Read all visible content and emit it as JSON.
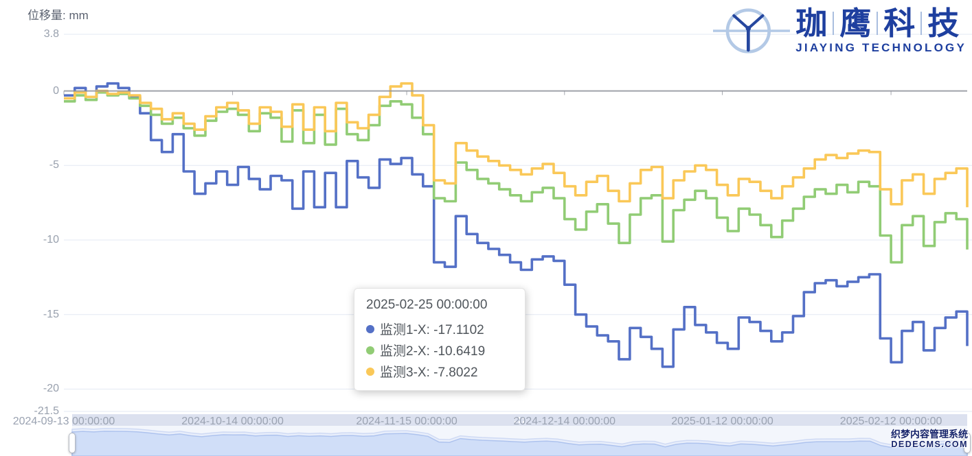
{
  "chart_data": {
    "type": "line",
    "step": "end",
    "title": "位移量: mm",
    "xlabel": "",
    "ylabel": "位移量: mm",
    "ylim": [
      -21.5,
      3.8
    ],
    "grid": true,
    "x_start": "2024-09-13 00:00:00",
    "x_interval_days": 2,
    "x_total_days": 166,
    "x_ticks": [
      {
        "label": "2024-09-13 00:00:00",
        "day": 0
      },
      {
        "label": "2024-10-14 00:00:00",
        "day": 31
      },
      {
        "label": "2024-11-15 00:00:00",
        "day": 63
      },
      {
        "label": "2024-12-14 00:00:00",
        "day": 92
      },
      {
        "label": "2025-01-12 00:00:00",
        "day": 121
      },
      {
        "label": "2025-02-12 00:00:00",
        "day": 152
      }
    ],
    "y_ticks": [
      {
        "value": 3.8,
        "label": "3.8"
      },
      {
        "value": 0,
        "label": "0"
      },
      {
        "value": -5,
        "label": "-5"
      },
      {
        "value": -10,
        "label": "-10"
      },
      {
        "value": -15,
        "label": "-15"
      },
      {
        "value": -20,
        "label": "-20"
      },
      {
        "value": -21.5,
        "label": "-21.5"
      }
    ],
    "series": [
      {
        "name": "监测1-X",
        "color": "#5470c6",
        "values": [
          -0.3,
          0.2,
          -0.4,
          0.3,
          0.5,
          0.2,
          -0.4,
          -1.5,
          -3.3,
          -4.1,
          -2.9,
          -5.4,
          -6.9,
          -6.2,
          -5.4,
          -6.3,
          -5.1,
          -5.9,
          -6.6,
          -5.7,
          -6.0,
          -7.9,
          -5.4,
          -7.8,
          -5.5,
          -7.8,
          -4.7,
          -5.8,
          -6.5,
          -4.6,
          -4.9,
          -4.5,
          -5.6,
          -6.4,
          -11.5,
          -11.8,
          -8.4,
          -9.6,
          -10.2,
          -10.6,
          -11.0,
          -11.5,
          -12.0,
          -11.3,
          -11.1,
          -11.4,
          -13.0,
          -15.0,
          -15.8,
          -16.4,
          -16.8,
          -18.0,
          -15.9,
          -16.5,
          -17.3,
          -18.5,
          -16.0,
          -14.5,
          -15.7,
          -16.2,
          -16.9,
          -17.3,
          -15.2,
          -15.5,
          -16.1,
          -16.8,
          -16.2,
          -15.1,
          -13.5,
          -12.9,
          -12.7,
          -13.1,
          -12.8,
          -12.5,
          -12.3,
          -16.6,
          -18.2,
          -16.1,
          -15.5,
          -17.4,
          -15.9,
          -15.2,
          -14.8,
          -17.11
        ]
      },
      {
        "name": "监测2-X",
        "color": "#91cc75",
        "values": [
          -0.7,
          -0.3,
          -0.6,
          -0.1,
          -0.3,
          -0.2,
          -0.5,
          -1.0,
          -1.6,
          -2.2,
          -1.8,
          -2.5,
          -3.0,
          -2.0,
          -1.4,
          -1.2,
          -1.6,
          -2.7,
          -1.5,
          -1.8,
          -3.4,
          -1.3,
          -3.5,
          -1.6,
          -3.6,
          -1.2,
          -2.9,
          -3.3,
          -2.3,
          -1.0,
          -0.7,
          -0.9,
          -1.8,
          -2.9,
          -7.2,
          -7.4,
          -4.8,
          -5.3,
          -5.9,
          -6.2,
          -6.6,
          -7.0,
          -7.4,
          -6.8,
          -6.5,
          -7.2,
          -8.6,
          -9.3,
          -8.1,
          -7.6,
          -8.9,
          -10.2,
          -8.3,
          -7.2,
          -7.0,
          -10.1,
          -8.0,
          -7.3,
          -6.7,
          -7.2,
          -8.5,
          -9.4,
          -7.9,
          -8.3,
          -9.0,
          -9.8,
          -8.7,
          -7.9,
          -7.1,
          -6.6,
          -6.9,
          -6.3,
          -6.8,
          -6.1,
          -6.4,
          -9.7,
          -11.5,
          -9.0,
          -8.4,
          -10.4,
          -8.8,
          -8.2,
          -8.6,
          -10.64
        ]
      },
      {
        "name": "监测3-X",
        "color": "#fac858",
        "values": [
          -0.5,
          -0.1,
          -0.4,
          0.0,
          -0.2,
          -0.1,
          -0.3,
          -0.8,
          -1.2,
          -1.9,
          -1.5,
          -2.2,
          -2.6,
          -1.7,
          -1.1,
          -0.8,
          -1.3,
          -2.2,
          -1.1,
          -1.4,
          -2.4,
          -0.9,
          -2.6,
          -1.1,
          -2.7,
          -0.8,
          -2.1,
          -2.5,
          -1.6,
          -0.4,
          0.3,
          0.5,
          -0.3,
          -2.3,
          -6.0,
          -6.2,
          -3.5,
          -4.0,
          -4.4,
          -4.7,
          -5.0,
          -5.3,
          -5.6,
          -5.2,
          -4.9,
          -5.5,
          -6.4,
          -7.0,
          -6.1,
          -5.7,
          -6.7,
          -7.4,
          -6.2,
          -5.3,
          -5.1,
          -7.2,
          -6.0,
          -5.4,
          -5.0,
          -5.3,
          -6.3,
          -7.0,
          -5.9,
          -6.1,
          -6.7,
          -7.2,
          -6.4,
          -5.8,
          -5.2,
          -4.6,
          -4.3,
          -4.5,
          -4.2,
          -4.0,
          -4.1,
          -6.6,
          -7.6,
          -6.0,
          -5.6,
          -6.9,
          -5.9,
          -5.5,
          -5.2,
          -7.8
        ]
      }
    ],
    "colors": {
      "grid_line": "#e3e8f3",
      "zero_axis_line": "#8f929b",
      "axis_label": "#98a0ad",
      "datazoom_strip": "#dce1ef",
      "datazoom_shadow_fill": "#d0def8",
      "datazoom_shadow_line": "#aec3ee"
    }
  },
  "tooltip": {
    "title": "2025-02-25 00:00:00",
    "items": [
      {
        "label": "监测1-X",
        "value": "-17.1102",
        "color": "#5470c6"
      },
      {
        "label": "监测2-X",
        "value": "-10.6419",
        "color": "#91cc75"
      },
      {
        "label": "监测3-X",
        "value": "-7.8022",
        "color": "#fac858"
      }
    ]
  },
  "logo": {
    "brand_chars": [
      "珈",
      "鹰",
      "科",
      "技"
    ],
    "subtitle": "JIAYING TECHNOLOGY",
    "brand_color": "#1e3f9f",
    "icon_color": "#b3c9e6"
  },
  "watermark": {
    "line1": "织梦内容管理系统",
    "line2": "DEDECMS.COM"
  }
}
